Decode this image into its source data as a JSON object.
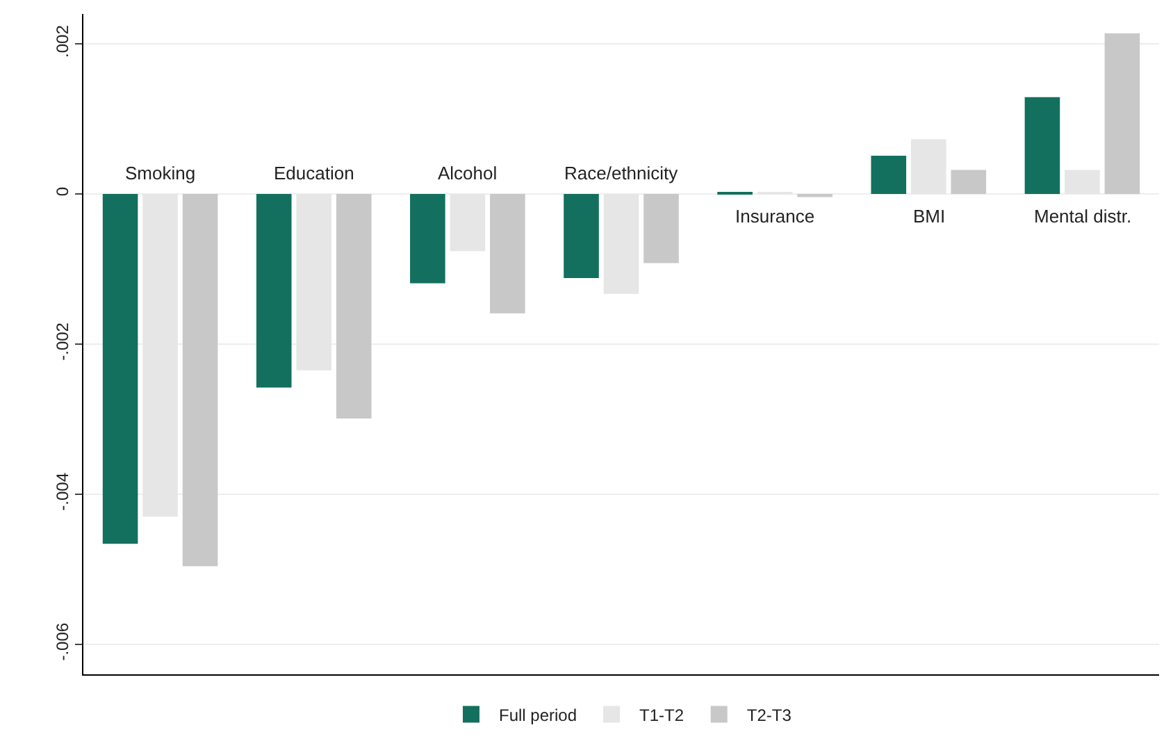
{
  "chart_data": {
    "type": "bar",
    "categories": [
      "Smoking",
      "Education",
      "Alcohol",
      "Race/ethnicity",
      "Insurance",
      "BMI",
      "Mental distr."
    ],
    "series": [
      {
        "name": "Full period",
        "color": "#13705e",
        "values": [
          -0.00466,
          -0.00258,
          -0.00119,
          -0.00112,
          2e-05,
          0.00051,
          0.00129
        ]
      },
      {
        "name": "T1-T2",
        "color": "#e6e6e6",
        "values": [
          -0.0043,
          -0.00235,
          -0.00076,
          -0.00133,
          2e-05,
          0.00073,
          0.00032
        ]
      },
      {
        "name": "T2-T3",
        "color": "#c8c8c8",
        "values": [
          -0.00496,
          -0.00299,
          -0.00159,
          -0.00092,
          -4e-05,
          0.00032,
          0.00214
        ]
      }
    ],
    "ylim": [
      -0.0064,
      0.0024
    ],
    "yticks": [
      {
        "value": 0.002,
        "label": ".002"
      },
      0,
      {
        "value": -0.002,
        "label": "-.002"
      },
      {
        "value": -0.004,
        "label": "-.004"
      },
      {
        "value": -0.006,
        "label": "-.006"
      }
    ],
    "grid": "y",
    "legend": "bottom",
    "tick_labels": "y"
  }
}
